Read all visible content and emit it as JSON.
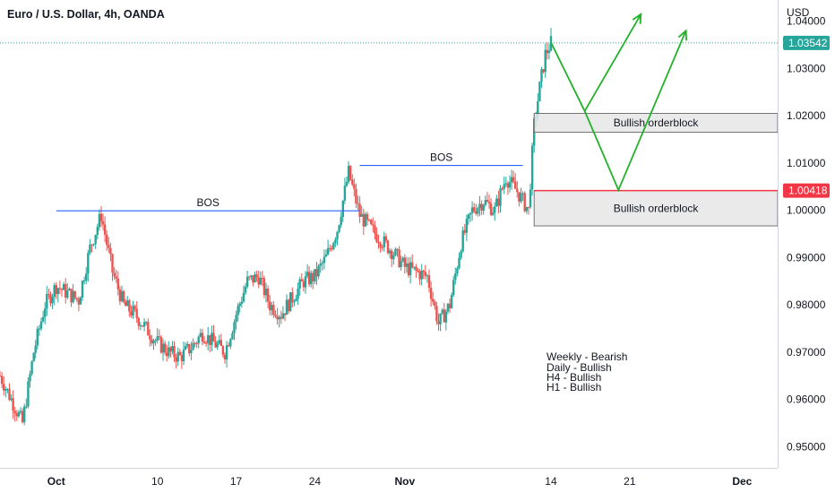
{
  "colors": {
    "up": "#26a69a",
    "down": "#ef5350",
    "bos_line": "#2962ff",
    "arrow": "#22b229",
    "ob_fill": "#e6e6e6",
    "ob_border": "#555555",
    "red_line": "#f23645",
    "axis_border": "#d1d4dc"
  },
  "chart_data": {
    "type": "candlestick",
    "title": "Euro / U.S. Dollar, 4h, OANDA",
    "y_unit": "USD",
    "ylim": [
      0.9455,
      1.0445
    ],
    "x_range": [
      "2022-09-26",
      "2022-12-04"
    ],
    "y_ticks": [
      "1.04000",
      "1.03000",
      "1.02000",
      "1.01000",
      "1.00000",
      "0.99000",
      "0.98000",
      "0.97000",
      "0.96000",
      "0.95000"
    ],
    "x_ticks": [
      {
        "label": "Oct",
        "date": "2022-10-01"
      },
      {
        "label": "10",
        "date": "2022-10-10"
      },
      {
        "label": "17",
        "date": "2022-10-17"
      },
      {
        "label": "24",
        "date": "2022-10-24"
      },
      {
        "label": "Nov",
        "date": "2022-11-01"
      },
      {
        "label": "14",
        "date": "2022-11-14"
      },
      {
        "label": "21",
        "date": "2022-11-21"
      },
      {
        "label": "Dec",
        "date": "2022-12-01"
      }
    ],
    "price_path": [
      [
        "2022-09-26",
        0.965
      ],
      [
        "2022-09-27",
        0.96
      ],
      [
        "2022-09-28",
        0.955
      ],
      [
        "2022-09-29",
        0.97
      ],
      [
        "2022-09-30",
        0.98
      ],
      [
        "2022-10-01",
        0.984
      ],
      [
        "2022-10-03",
        0.981
      ],
      [
        "2022-10-04",
        0.992
      ],
      [
        "2022-10-05",
        0.999
      ],
      [
        "2022-10-06",
        0.987
      ],
      [
        "2022-10-07",
        0.98
      ],
      [
        "2022-10-08",
        0.978
      ],
      [
        "2022-10-10",
        0.972
      ],
      [
        "2022-10-11",
        0.97
      ],
      [
        "2022-10-12",
        0.969
      ],
      [
        "2022-10-13",
        0.971
      ],
      [
        "2022-10-14",
        0.974
      ],
      [
        "2022-10-16",
        0.97
      ],
      [
        "2022-10-17",
        0.978
      ],
      [
        "2022-10-18",
        0.985
      ],
      [
        "2022-10-19",
        0.986
      ],
      [
        "2022-10-20",
        0.98
      ],
      [
        "2022-10-21",
        0.978
      ],
      [
        "2022-10-23",
        0.985
      ],
      [
        "2022-10-24",
        0.986
      ],
      [
        "2022-10-25",
        0.99
      ],
      [
        "2022-10-26",
        0.996
      ],
      [
        "2022-10-27",
        1.008
      ],
      [
        "2022-10-28",
        0.999
      ],
      [
        "2022-10-29",
        0.996
      ],
      [
        "2022-10-31",
        0.991
      ],
      [
        "2022-11-01",
        0.988
      ],
      [
        "2022-11-02",
        0.987
      ],
      [
        "2022-11-03",
        0.986
      ],
      [
        "2022-11-04",
        0.976
      ],
      [
        "2022-11-05",
        0.98
      ],
      [
        "2022-11-06",
        0.993
      ],
      [
        "2022-11-07",
        1.0
      ],
      [
        "2022-11-08",
        1.002
      ],
      [
        "2022-11-09",
        1.0
      ],
      [
        "2022-11-10",
        1.007
      ],
      [
        "2022-11-11",
        1.004
      ],
      [
        "2022-11-12",
        1.0
      ],
      [
        "2022-11-12T12:00",
        1.018
      ],
      [
        "2022-11-13",
        1.026
      ],
      [
        "2022-11-13T12:00",
        1.033
      ],
      [
        "2022-11-14",
        1.0354
      ]
    ],
    "last_price": "1.03542",
    "red_level": "1.00418",
    "annotations": {
      "bos": [
        {
          "label": "BOS",
          "y": 0.9999,
          "x_start": "2022-10-01",
          "x_end": "2022-10-28"
        },
        {
          "label": "BOS",
          "y": 1.0095,
          "x_start": "2022-10-28",
          "x_end": "2022-11-11T12:00"
        }
      ],
      "orderblocks": [
        {
          "label": "Bullish orderblock",
          "y_top": 1.0205,
          "y_bottom": 1.0165,
          "x_start": "2022-11-12T12:00",
          "x_end": "2022-12-14"
        },
        {
          "label": "Bullish orderblock",
          "y_top": 1.0042,
          "y_bottom": 0.9967,
          "x_start": "2022-11-12T12:00",
          "x_end": "2022-12-04T12:00"
        }
      ],
      "arrows": [
        {
          "points": [
            [
              "2022-11-14",
              1.0355
            ],
            [
              "2022-11-17",
              1.021
            ],
            [
              "2022-11-22",
              1.0415
            ]
          ]
        },
        {
          "points": [
            [
              "2022-11-17",
              1.021
            ],
            [
              "2022-11-20",
              1.0043
            ],
            [
              "2022-11-26",
              1.038
            ]
          ]
        }
      ],
      "bias_notes": [
        "Weekly - Bearish",
        "Daily - Bullish",
        "H4 - Bullish",
        "H1 - Bullish"
      ]
    }
  }
}
